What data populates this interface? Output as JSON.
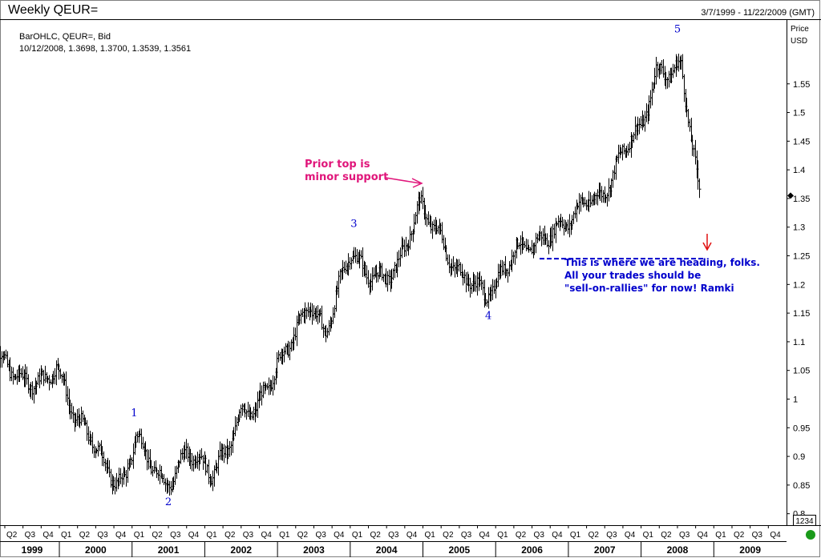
{
  "header": {
    "title": "Weekly QEUR=",
    "date_range": "3/7/1999 - 11/22/2009 (GMT)"
  },
  "legend": {
    "line1": "BarOHLC, QEUR=, Bid",
    "line2": "10/12/2008, 1.3698, 1.3700, 1.3539, 1.3561"
  },
  "axis": {
    "unit_line1": "Price",
    "unit_line2": "USD",
    "price_box": "1234"
  },
  "colors": {
    "bars": "#000000",
    "wave_labels": "#0000cc",
    "annotation_pink": "#e0157a",
    "annotation_blue": "#0000cc",
    "arrow_red": "#e01010",
    "status_green": "#1a9a1a"
  },
  "chart_data": {
    "type": "ohlc_bar",
    "ylim": [
      0.78,
      1.66
    ],
    "y_ticks": [
      0.8,
      0.85,
      0.9,
      0.95,
      1,
      1.05,
      1.1,
      1.15,
      1.2,
      1.25,
      1.3,
      1.35,
      1.4,
      1.45,
      1.5,
      1.55
    ],
    "y_tick_labels": [
      "0.8",
      "0.85",
      "0.9",
      "0.95",
      "1",
      "1.05",
      "1.1",
      "1.15",
      "1.2",
      "1.25",
      "1.3",
      "1.35",
      "1.4",
      "1.45",
      "1.5",
      "1.55"
    ],
    "quarter_labels": [
      "Q2",
      "Q3",
      "Q4",
      "Q1",
      "Q2",
      "Q3",
      "Q4",
      "Q1",
      "Q2",
      "Q3",
      "Q4",
      "Q1",
      "Q2",
      "Q3",
      "Q4",
      "Q1",
      "Q2",
      "Q3",
      "Q4",
      "Q1",
      "Q2",
      "Q3",
      "Q4",
      "Q1",
      "Q2",
      "Q3",
      "Q4",
      "Q1",
      "Q2",
      "Q3",
      "Q4",
      "Q1",
      "Q2",
      "Q3",
      "Q4",
      "Q1",
      "Q2",
      "Q3",
      "Q4",
      "Q1",
      "Q2",
      "Q3",
      "Q4"
    ],
    "year_labels": [
      "1999",
      "2000",
      "2001",
      "2002",
      "2003",
      "2004",
      "2005",
      "2006",
      "2007",
      "2008",
      "2009"
    ],
    "x_range": [
      "1999-04",
      "2009-12"
    ],
    "price_path": [
      [
        1999.2,
        1.07
      ],
      [
        1999.5,
        1.03
      ],
      [
        1999.8,
        1.03
      ],
      [
        1999.95,
        1.06
      ],
      [
        2000.2,
        0.97
      ],
      [
        2000.45,
        0.93
      ],
      [
        2000.6,
        0.89
      ],
      [
        2000.8,
        0.85
      ],
      [
        2000.9,
        0.86
      ],
      [
        2001.05,
        0.94
      ],
      [
        2001.2,
        0.9
      ],
      [
        2001.45,
        0.85
      ],
      [
        2001.55,
        0.86
      ],
      [
        2001.75,
        0.91
      ],
      [
        2001.95,
        0.89
      ],
      [
        2002.1,
        0.87
      ],
      [
        2002.3,
        0.91
      ],
      [
        2002.5,
        0.98
      ],
      [
        2002.7,
        0.98
      ],
      [
        2002.85,
        1.02
      ],
      [
        2003.0,
        1.06
      ],
      [
        2003.3,
        1.13
      ],
      [
        2003.45,
        1.17
      ],
      [
        2003.65,
        1.11
      ],
      [
        2003.85,
        1.2
      ],
      [
        2004.0,
        1.26
      ],
      [
        2004.2,
        1.22
      ],
      [
        2004.45,
        1.21
      ],
      [
        2004.65,
        1.23
      ],
      [
        2004.95,
        1.34
      ],
      [
        2005.1,
        1.31
      ],
      [
        2005.25,
        1.28
      ],
      [
        2005.45,
        1.22
      ],
      [
        2005.65,
        1.21
      ],
      [
        2005.85,
        1.18
      ],
      [
        2006.0,
        1.2
      ],
      [
        2006.25,
        1.26
      ],
      [
        2006.55,
        1.27
      ],
      [
        2006.85,
        1.3
      ],
      [
        2007.0,
        1.31
      ],
      [
        2007.25,
        1.35
      ],
      [
        2007.45,
        1.35
      ],
      [
        2007.6,
        1.39
      ],
      [
        2007.85,
        1.46
      ],
      [
        2008.0,
        1.47
      ],
      [
        2008.2,
        1.57
      ],
      [
        2008.4,
        1.57
      ],
      [
        2008.55,
        1.58
      ],
      [
        2008.65,
        1.49
      ],
      [
        2008.75,
        1.4
      ],
      [
        2008.8,
        1.36
      ]
    ],
    "wave_labels": [
      {
        "label": "1",
        "x": 2001.03,
        "y": 0.97
      },
      {
        "label": "2",
        "x": 2001.5,
        "y": 0.815
      },
      {
        "label": "3",
        "x": 2004.05,
        "y": 1.3
      },
      {
        "label": "4",
        "x": 2005.9,
        "y": 1.14
      },
      {
        "label": "5",
        "x": 2008.5,
        "y": 1.64
      }
    ],
    "annotations": [
      {
        "text_lines": [
          "Prior top is",
          "minor support"
        ],
        "color": "pink"
      },
      {
        "text_lines": [
          "This is where we are heading, folks.",
          "All your  trades should be",
          "\"sell-on-rallies\"  for now! Ramki"
        ],
        "color": "blue"
      }
    ],
    "target_line_value": 1.245,
    "last_price_marker": 1.355
  }
}
